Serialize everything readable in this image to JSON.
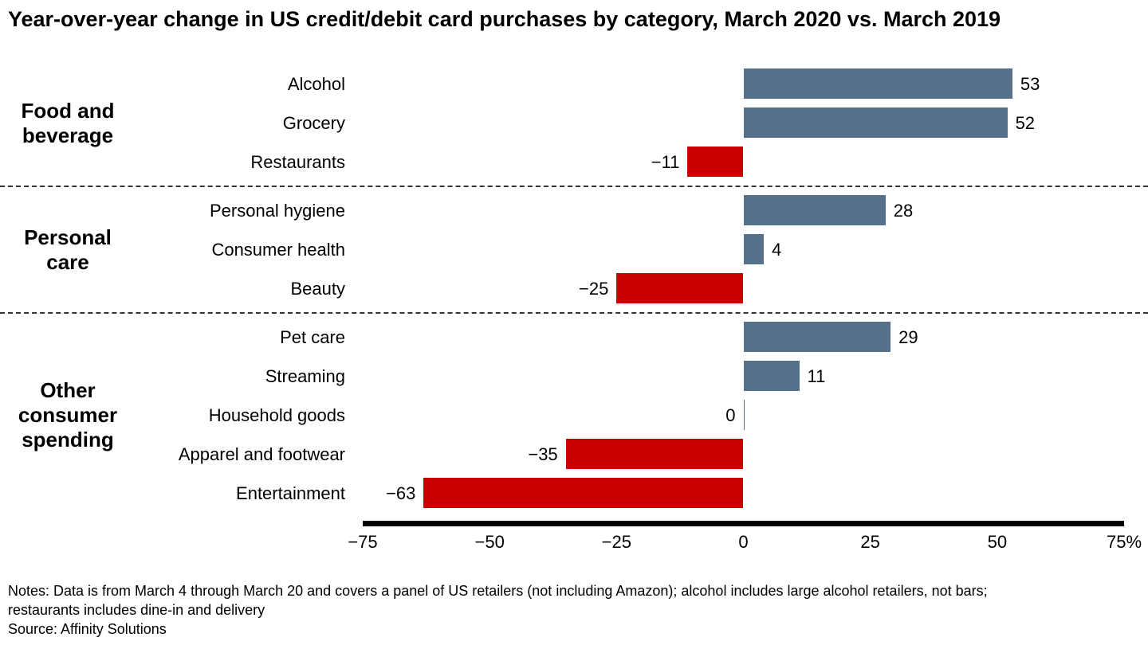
{
  "title": "Year-over-year change in US credit/debit card purchases by category, March 2020 vs. March 2019",
  "colors": {
    "positive": "#55708a",
    "negative": "#cc0000"
  },
  "chart_data": {
    "type": "bar",
    "orientation": "horizontal",
    "unit": "%",
    "title": "Year-over-year change in US credit/debit card purchases by category, March 2020 vs. March 2019",
    "xlim": [
      -75,
      75
    ],
    "x_tick_values": [
      -75,
      -50,
      -25,
      0,
      25,
      50,
      75
    ],
    "x_ticks": [
      "−75",
      "−50",
      "−25",
      "0",
      "25",
      "50",
      "75%"
    ],
    "grid": false,
    "legend": false,
    "groups": [
      {
        "label": "Food and beverage",
        "label_lines": [
          "Food and",
          "beverage"
        ],
        "items": [
          {
            "category": "Alcohol",
            "value": 53,
            "label": "53"
          },
          {
            "category": "Grocery",
            "value": 52,
            "label": "52"
          },
          {
            "category": "Restaurants",
            "value": -11,
            "label": "−11"
          }
        ]
      },
      {
        "label": "Personal care",
        "label_lines": [
          "Personal",
          "care"
        ],
        "items": [
          {
            "category": "Personal hygiene",
            "value": 28,
            "label": "28"
          },
          {
            "category": "Consumer health",
            "value": 4,
            "label": "4"
          },
          {
            "category": "Beauty",
            "value": -25,
            "label": "−25"
          }
        ]
      },
      {
        "label": "Other consumer spending",
        "label_lines": [
          "Other",
          "consumer",
          "spending"
        ],
        "items": [
          {
            "category": "Pet care",
            "value": 29,
            "label": "29"
          },
          {
            "category": "Streaming",
            "value": 11,
            "label": "11"
          },
          {
            "category": "Household goods",
            "value": 0,
            "label": "0"
          },
          {
            "category": "Apparel and footwear",
            "value": -35,
            "label": "−35"
          },
          {
            "category": "Entertainment",
            "value": -63,
            "label": "−63"
          }
        ]
      }
    ]
  },
  "notes": [
    "Notes: Data is from March 4 through March 20 and covers a panel of US retailers (not including Amazon); alcohol includes large alcohol retailers, not bars;",
    "restaurants includes dine-in and delivery"
  ],
  "source": "Source: Affinity Solutions"
}
